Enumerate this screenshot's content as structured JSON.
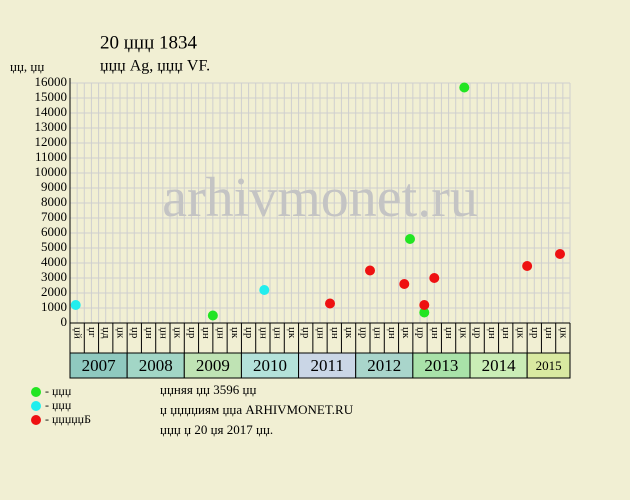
{
  "chart_data": {
    "type": "scatter",
    "title": "20 џџџ 1834",
    "subtitle": "џџџ Ag, џџџ VF.",
    "y_label": "џџ, џџ",
    "watermark": "arhivmonet.ru",
    "categories": [
      "џй",
      "џг",
      "џд",
      "џк",
      "џр",
      "џн",
      "џн",
      "џк",
      "џр",
      "џн",
      "џн",
      "џк",
      "џр",
      "џн",
      "џн",
      "џк",
      "џр",
      "џн",
      "џн",
      "џк",
      "џр",
      "џн",
      "џн",
      "џк",
      "џр",
      "џн",
      "џн",
      "џк",
      "џр",
      "џн",
      "џн",
      "џк",
      "џр",
      "џн",
      "џк"
    ],
    "year_groups": [
      {
        "label": "2007",
        "columns": 4,
        "color": "#8fc9bf"
      },
      {
        "label": "2008",
        "columns": 4,
        "color": "#a2d6c6"
      },
      {
        "label": "2009",
        "columns": 4,
        "color": "#bfe3b4"
      },
      {
        "label": "2010",
        "columns": 4,
        "color": "#b4e2da"
      },
      {
        "label": "2011",
        "columns": 4,
        "color": "#cad6e6"
      },
      {
        "label": "2012",
        "columns": 4,
        "color": "#a9d5cb"
      },
      {
        "label": "2013",
        "columns": 4,
        "color": "#a9e2a9"
      },
      {
        "label": "2014",
        "columns": 4,
        "color": "#caedb6"
      },
      {
        "label": "2015",
        "columns": 3,
        "color": "#d9e9a1"
      }
    ],
    "xlim": [
      0,
      35
    ],
    "ylim": [
      0,
      16000
    ],
    "yticks": [
      0,
      1000,
      2000,
      3000,
      4000,
      5000,
      6000,
      7000,
      8000,
      9000,
      10000,
      11000,
      12000,
      13000,
      14000,
      15000,
      16000
    ],
    "grid": true,
    "series": [
      {
        "name": "- џџџ",
        "color": "#22e522",
        "x": [
          10.0,
          24.8,
          23.8,
          27.6
        ],
        "values": [
          500,
          700,
          5600,
          15700
        ]
      },
      {
        "name": "- џџџ",
        "color": "#22eeee",
        "x": [
          0.4,
          13.6
        ],
        "values": [
          1200,
          2200
        ]
      },
      {
        "name": "- џџџџџБ",
        "color": "#ee1111",
        "x": [
          18.2,
          21.0,
          23.4,
          24.8,
          25.5,
          32.0,
          34.3
        ],
        "values": [
          1300,
          3500,
          2600,
          1200,
          3000,
          3800,
          4600
        ]
      }
    ],
    "notes": [
      "џџняя џџ 3596 џџ",
      "џ џџџџиям џџа ARHIVMONET.RU",
      "џџџ џ 20 џя 2017 џџ."
    ]
  }
}
